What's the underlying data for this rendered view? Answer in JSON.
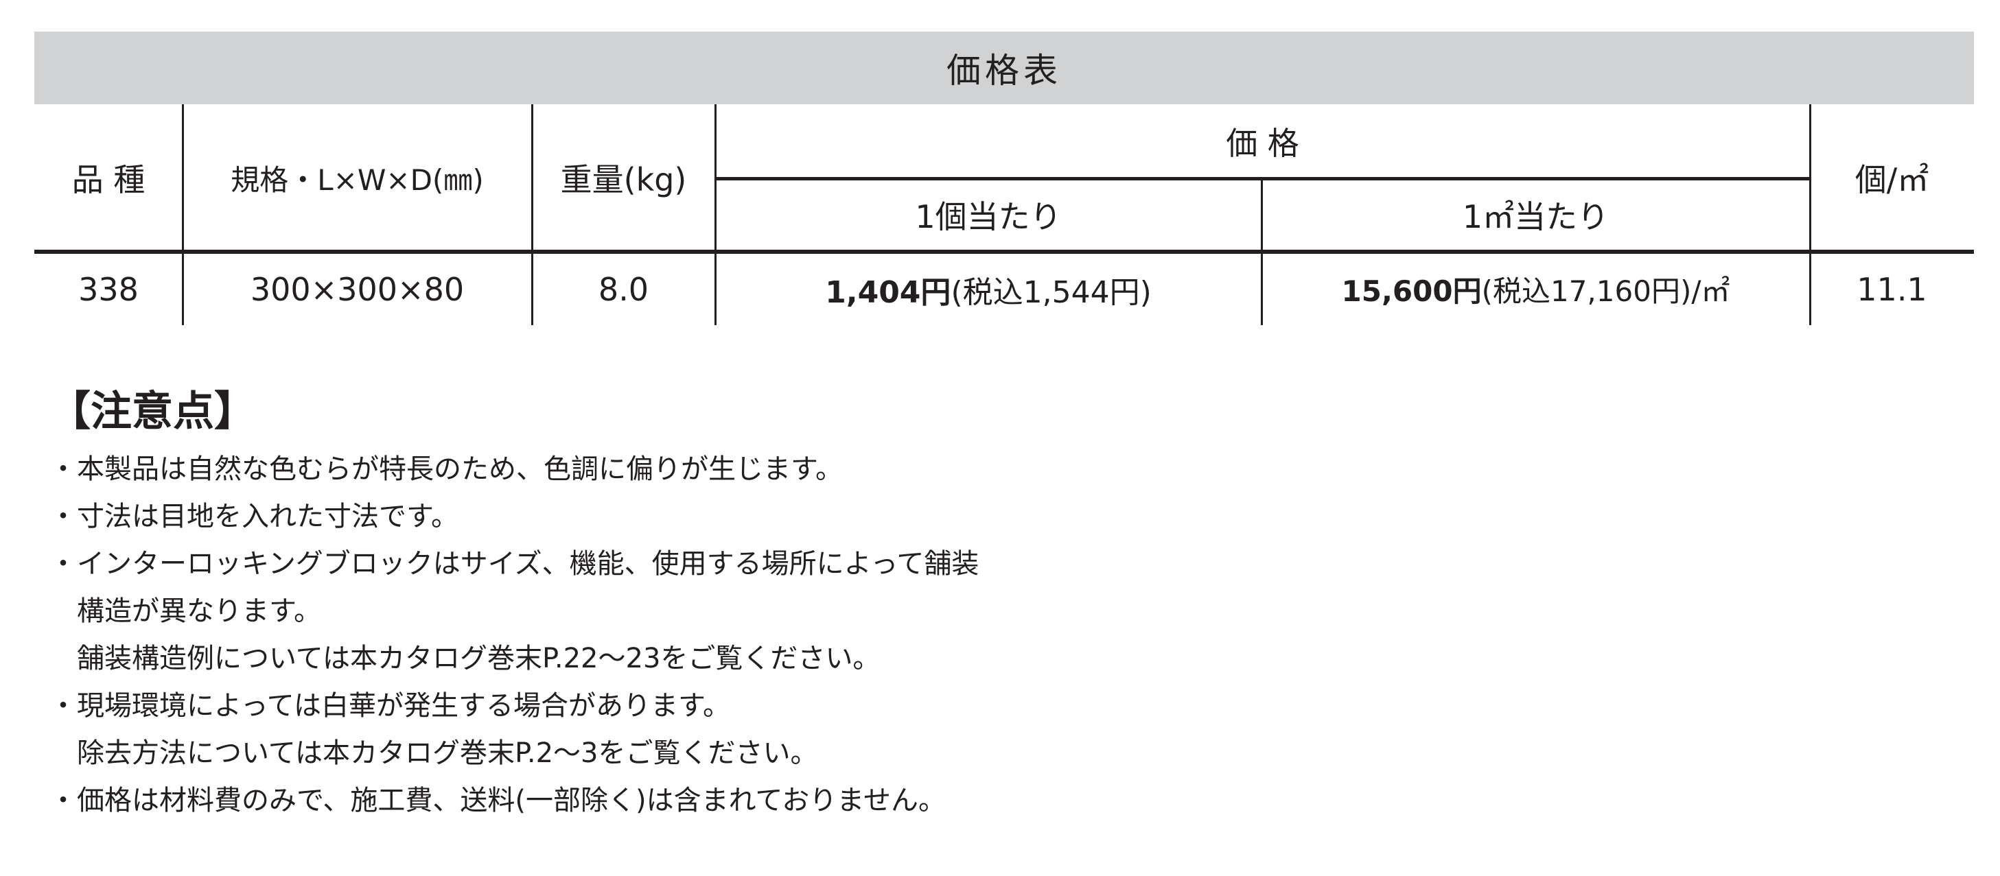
{
  "table": {
    "title": "価格表",
    "headers": {
      "product": "品 種",
      "spec": "規格・L×W×D(㎜)",
      "weight": "重量(kg)",
      "price": "価 格",
      "per_piece": "1個当たり",
      "per_sqm": "1㎡当たり",
      "pieces_per_sqm": "個/㎡"
    },
    "rows": [
      {
        "product": "338",
        "spec": "300×300×80",
        "weight": "8.0",
        "per_piece_price": "1,404円",
        "per_piece_tax": "(税込1,544円)",
        "per_sqm_price": "15,600円",
        "per_sqm_tax": "(税込17,160円)/㎡",
        "pieces_per_sqm": "11.1"
      }
    ]
  },
  "notes": {
    "title": "【注意点】",
    "lines": [
      "・本製品は自然な色むらが特長のため、色調に偏りが生じます。",
      "・寸法は目地を入れた寸法です。",
      "・インターロッキングブロックはサイズ、機能、使用する場所によって舗装",
      "　構造が異なります。",
      "　舗装構造例については本カタログ巻末P.22～23をご覧ください。",
      "・現場環境によっては白華が発生する場合があります。",
      "　除去方法については本カタログ巻末P.2～3をご覧ください。",
      "・価格は材料費のみで、施工費、送料(一部除く)は含まれておりません。"
    ]
  },
  "colors": {
    "header_band": "#d1d2d4",
    "text": "#231f20"
  }
}
